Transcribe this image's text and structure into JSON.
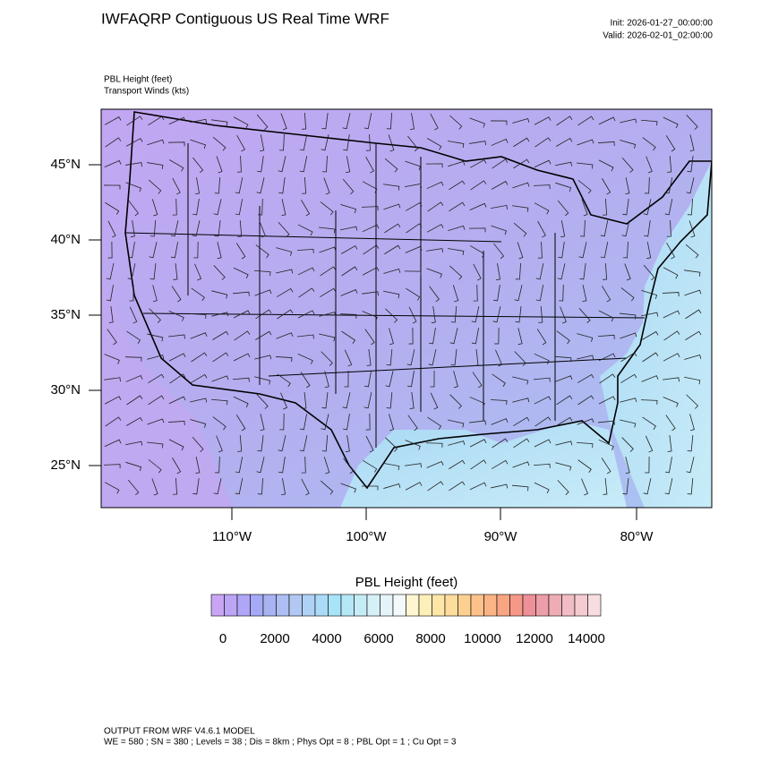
{
  "header": {
    "title": "IWFAQRP Contiguous US Real Time WRF",
    "init": "Init: 2026-01-27_00:00:00",
    "valid": "Valid: 2026-02-01_02:00:00"
  },
  "fields": [
    "PBL Height   (feet)",
    "Transport Winds   (kts)"
  ],
  "map": {
    "lat_labels": [
      "45°N",
      "40°N",
      "35°N",
      "30°N",
      "25°N"
    ],
    "lon_labels": [
      "110°W",
      "100°W",
      "90°W",
      "80°W"
    ]
  },
  "colorbar": {
    "title": "PBL Height  (feet)",
    "labels": [
      "0",
      "2000",
      "4000",
      "6000",
      "8000",
      "10000",
      "12000",
      "14000"
    ]
  },
  "footer": [
    "OUTPUT FROM WRF V4.6.1 MODEL",
    "WE = 580 ; SN = 380 ; Levels = 38 ; Dis = 8km ; Phys Opt = 8 ; PBL Opt = 1 ; Cu Opt = 3"
  ]
}
